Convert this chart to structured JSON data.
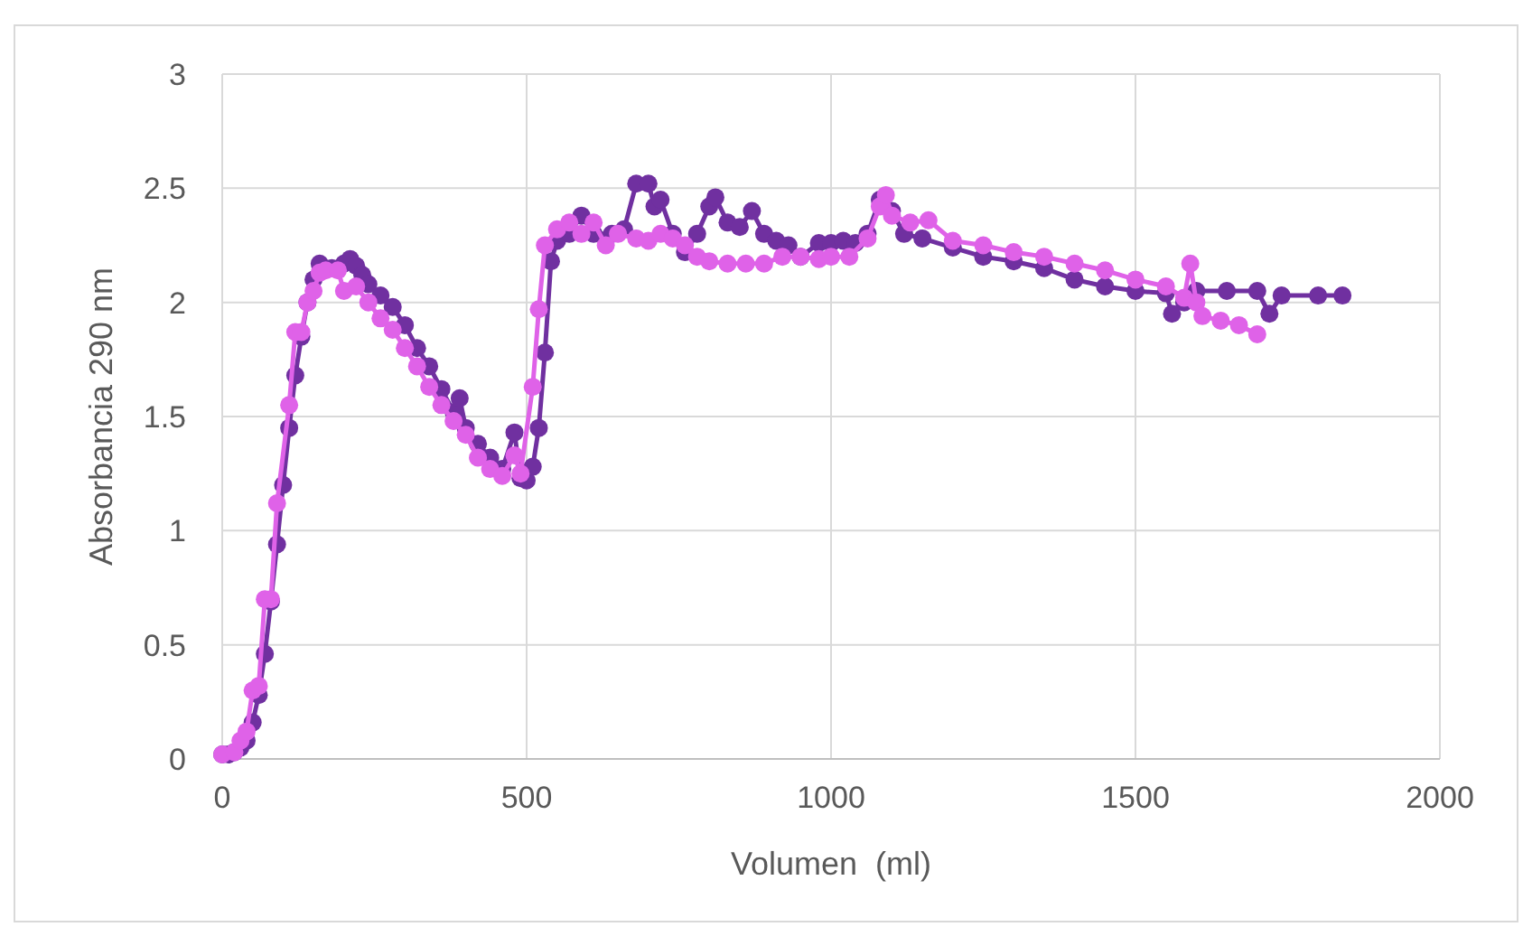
{
  "chart_data": {
    "type": "line",
    "xlabel": "Volumen  (ml)",
    "ylabel": "Absorbancia 290 nm",
    "xlim": [
      0,
      2000
    ],
    "xticks": [
      0,
      500,
      1000,
      1500,
      2000
    ],
    "ylim": [
      0,
      3
    ],
    "yticks": [
      0,
      0.5,
      1,
      1.5,
      2,
      2.5,
      3
    ],
    "grid": true,
    "marker": "circle",
    "line_style": "solid",
    "series": [
      {
        "color": "#7030a0",
        "x": [
          0,
          10,
          20,
          30,
          40,
          50,
          60,
          70,
          80,
          90,
          100,
          110,
          120,
          130,
          140,
          150,
          160,
          180,
          200,
          210,
          220,
          230,
          240,
          260,
          280,
          300,
          320,
          340,
          360,
          380,
          390,
          400,
          420,
          440,
          460,
          480,
          490,
          500,
          510,
          520,
          530,
          540,
          550,
          570,
          590,
          610,
          640,
          660,
          680,
          700,
          710,
          720,
          740,
          760,
          780,
          800,
          810,
          830,
          850,
          870,
          890,
          910,
          930,
          950,
          980,
          1000,
          1020,
          1040,
          1060,
          1080,
          1100,
          1120,
          1150,
          1200,
          1250,
          1300,
          1350,
          1400,
          1450,
          1500,
          1550,
          1560,
          1580,
          1600,
          1650,
          1700,
          1720,
          1740,
          1800,
          1840
        ],
        "values": [
          0.02,
          0.02,
          0.03,
          0.05,
          0.08,
          0.16,
          0.28,
          0.46,
          0.69,
          0.94,
          1.2,
          1.45,
          1.68,
          1.85,
          2.0,
          2.1,
          2.17,
          2.15,
          2.17,
          2.19,
          2.16,
          2.12,
          2.08,
          2.03,
          1.98,
          1.9,
          1.8,
          1.72,
          1.62,
          1.52,
          1.58,
          1.45,
          1.38,
          1.32,
          1.27,
          1.43,
          1.23,
          1.22,
          1.28,
          1.45,
          1.78,
          2.18,
          2.27,
          2.3,
          2.38,
          2.3,
          2.3,
          2.32,
          2.52,
          2.52,
          2.42,
          2.45,
          2.3,
          2.22,
          2.3,
          2.42,
          2.46,
          2.35,
          2.33,
          2.4,
          2.3,
          2.27,
          2.25,
          2.2,
          2.26,
          2.26,
          2.27,
          2.26,
          2.3,
          2.45,
          2.4,
          2.3,
          2.28,
          2.24,
          2.2,
          2.18,
          2.15,
          2.1,
          2.07,
          2.05,
          2.04,
          1.95,
          2.0,
          2.05,
          2.05,
          2.05,
          1.95,
          2.03,
          2.03,
          2.03
        ]
      },
      {
        "color": "#df62e8",
        "x": [
          0,
          20,
          30,
          40,
          50,
          60,
          70,
          80,
          90,
          110,
          120,
          130,
          140,
          150,
          160,
          170,
          190,
          200,
          220,
          240,
          260,
          280,
          300,
          320,
          340,
          360,
          380,
          400,
          420,
          440,
          460,
          480,
          490,
          510,
          520,
          530,
          550,
          570,
          590,
          610,
          630,
          650,
          680,
          700,
          720,
          740,
          760,
          780,
          800,
          830,
          860,
          890,
          920,
          950,
          980,
          1000,
          1030,
          1060,
          1080,
          1090,
          1100,
          1130,
          1160,
          1200,
          1250,
          1300,
          1350,
          1400,
          1450,
          1500,
          1550,
          1580,
          1590,
          1600,
          1610,
          1640,
          1670,
          1700
        ],
        "values": [
          0.02,
          0.03,
          0.08,
          0.12,
          0.3,
          0.32,
          0.7,
          0.7,
          1.12,
          1.55,
          1.87,
          1.87,
          2.0,
          2.05,
          2.13,
          2.14,
          2.14,
          2.05,
          2.07,
          2.0,
          1.93,
          1.88,
          1.8,
          1.72,
          1.63,
          1.55,
          1.48,
          1.42,
          1.32,
          1.27,
          1.24,
          1.33,
          1.25,
          1.63,
          1.97,
          2.25,
          2.32,
          2.35,
          2.3,
          2.35,
          2.25,
          2.3,
          2.28,
          2.27,
          2.3,
          2.28,
          2.25,
          2.2,
          2.18,
          2.17,
          2.17,
          2.17,
          2.2,
          2.2,
          2.19,
          2.2,
          2.2,
          2.28,
          2.42,
          2.47,
          2.38,
          2.35,
          2.36,
          2.27,
          2.25,
          2.22,
          2.2,
          2.17,
          2.14,
          2.1,
          2.07,
          2.02,
          2.17,
          2.0,
          1.94,
          1.92,
          1.9,
          1.86
        ]
      }
    ]
  }
}
